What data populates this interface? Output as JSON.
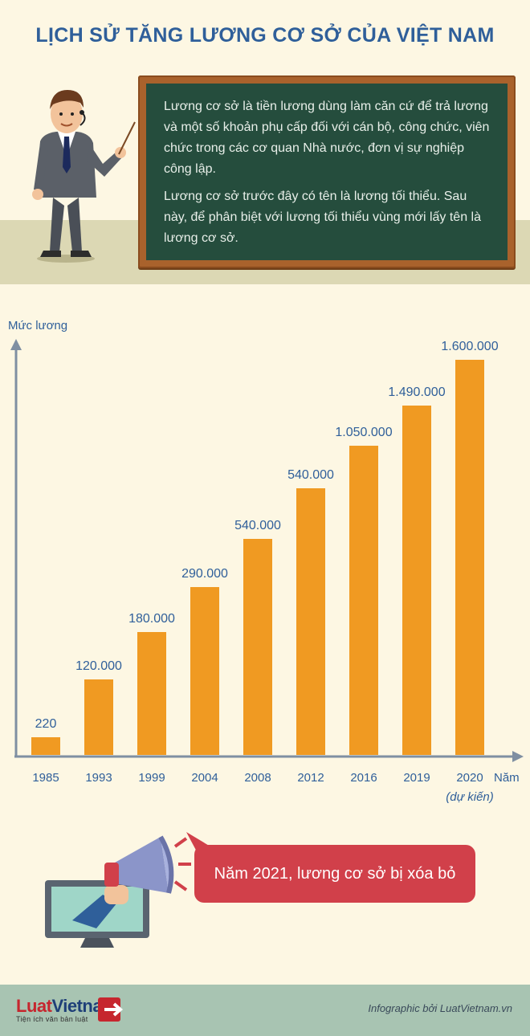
{
  "title": "LỊCH SỬ TĂNG LƯƠNG CƠ SỞ CỦA VIỆT NAM",
  "board": {
    "paragraph1": "Lương cơ sở là tiền lương dùng làm căn cứ để trả lương và một số khoản phụ cấp đối với cán bộ, công chức, viên chức trong các cơ quan Nhà nước, đơn vị sự nghiệp công lập.",
    "paragraph2": "Lương cơ sở trước đây có tên là lương tối thiểu. Sau này, để phân biệt với lương tối thiểu vùng mới lấy tên là lương cơ sở."
  },
  "chart_data": {
    "type": "bar",
    "ylabel": "Mức lương",
    "xlabel": "Năm",
    "categories": [
      "1985",
      "1993",
      "1999",
      "2004",
      "2008",
      "2012",
      "2016",
      "2019",
      "2020"
    ],
    "category_notes": [
      "",
      "",
      "",
      "",
      "",
      "",
      "",
      "",
      "(dự kiến)"
    ],
    "value_labels": [
      "220",
      "120.000",
      "180.000",
      "290.000",
      "540.000",
      "540.000",
      "1.050.000",
      "1.490.000",
      "1.600.000"
    ],
    "values": [
      220,
      120000,
      180000,
      290000,
      540000,
      540000,
      1050000,
      1490000,
      1600000
    ],
    "relative_heights": [
      0.044,
      0.191,
      0.311,
      0.425,
      0.547,
      0.674,
      0.782,
      0.885,
      1.0
    ],
    "bar_color": "#f09a22",
    "grid": false,
    "legend": "none"
  },
  "announcement": "Năm 2021, lương cơ sở bị xóa bỏ",
  "footer": {
    "logo_luat": "Luat",
    "logo_vietnam": "Vietnam",
    "logo_tagline": "Tiện ích văn bản luật",
    "credit": "Infographic bởi LuatVietnam.vn"
  },
  "colors": {
    "background": "#fdf7e3",
    "title": "#2f5f9a",
    "board": "#254d3d",
    "frame": "#a9622c",
    "bubble": "#d1404a",
    "footer": "#a8c4b2"
  },
  "icons": [
    "teacher-figure-icon",
    "pointer-stick-icon",
    "megaphone-icon",
    "monitor-icon",
    "hand-icon",
    "logo-arrow-icon"
  ]
}
